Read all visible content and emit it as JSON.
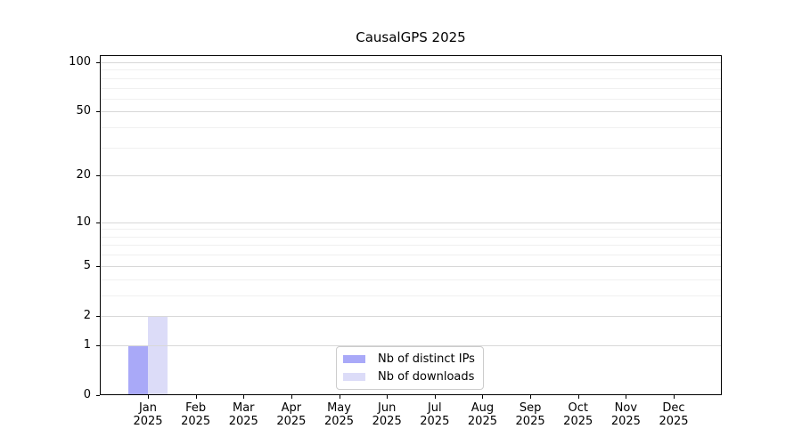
{
  "chart_data": {
    "type": "bar",
    "title": "CausalGPS 2025",
    "x_months": [
      "Jan",
      "Feb",
      "Mar",
      "Apr",
      "May",
      "Jun",
      "Jul",
      "Aug",
      "Sep",
      "Oct",
      "Nov",
      "Dec"
    ],
    "x_year": "2025",
    "series": [
      {
        "name": "Nb of distinct IPs",
        "color": "#a9a9f8",
        "values": [
          1,
          0,
          0,
          0,
          0,
          0,
          0,
          0,
          0,
          0,
          0,
          0
        ]
      },
      {
        "name": "Nb of downloads",
        "color": "#dcdcf8",
        "values": [
          2,
          0,
          0,
          0,
          0,
          0,
          0,
          0,
          0,
          0,
          0,
          0
        ]
      }
    ],
    "y_scale": "log1p",
    "ylim": [
      0,
      110
    ],
    "y_major_ticks": [
      0,
      1,
      2,
      5,
      10,
      20,
      50,
      100
    ],
    "y_minor_ticks": [
      3,
      4,
      6,
      7,
      8,
      9,
      30,
      40,
      60,
      70,
      80,
      90
    ],
    "grid": true,
    "legend_position": "lower-center-inside",
    "colors": {
      "major_grid": "#d8d8d8",
      "minor_grid": "#f0f0f0",
      "spine": "#000000",
      "legend_border": "#cccccc",
      "text": "#000000"
    }
  }
}
